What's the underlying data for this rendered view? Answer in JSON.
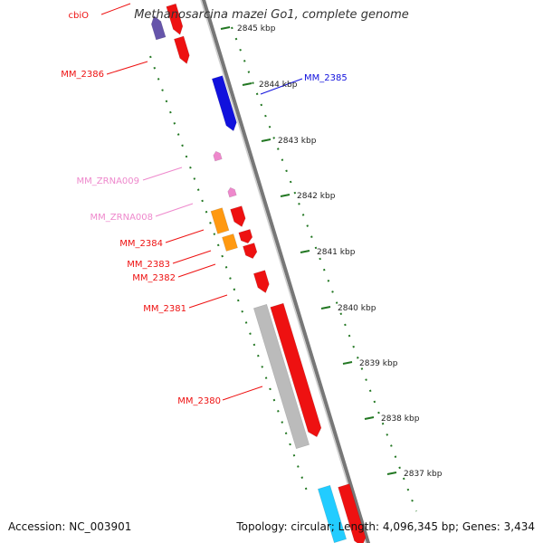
{
  "title": "Methanosarcina mazei Go1, complete genome",
  "footer": {
    "accession": "Accession: NC_003901",
    "topology": "Topology: circular; Length: 4,096,345 bp; Genes: 3,434"
  },
  "colors": {
    "forward_gene": "#ee1111",
    "reverse_gene_highlight": "#1111dd",
    "ncrna": "#ee88cc",
    "orange_gene": "#ff9911",
    "gray_gene": "#bbbbbb",
    "cyan_gene": "#22ccff",
    "navy_gene": "#6655aa",
    "scale_tick": "#227722",
    "backbone": "#888888"
  },
  "scale_labels": [
    "2845 kbp",
    "2844 kbp",
    "2843 kbp",
    "2842 kbp",
    "2841 kbp",
    "2840 kbp",
    "2839 kbp",
    "2838 kbp",
    "2837 kbp"
  ],
  "gene_labels": [
    {
      "text": "cbiO",
      "color": "#ee1111"
    },
    {
      "text": "MM_2386",
      "color": "#ee1111"
    },
    {
      "text": "MM_2385",
      "color": "#1111dd"
    },
    {
      "text": "MM_ZRNA009",
      "color": "#ee88cc"
    },
    {
      "text": "MM_ZRNA008",
      "color": "#ee88cc"
    },
    {
      "text": "MM_2384",
      "color": "#ee1111"
    },
    {
      "text": "MM_2383",
      "color": "#ee1111"
    },
    {
      "text": "MM_2382",
      "color": "#ee1111"
    },
    {
      "text": "MM_2381",
      "color": "#ee1111"
    },
    {
      "text": "MM_2380",
      "color": "#ee1111"
    }
  ]
}
